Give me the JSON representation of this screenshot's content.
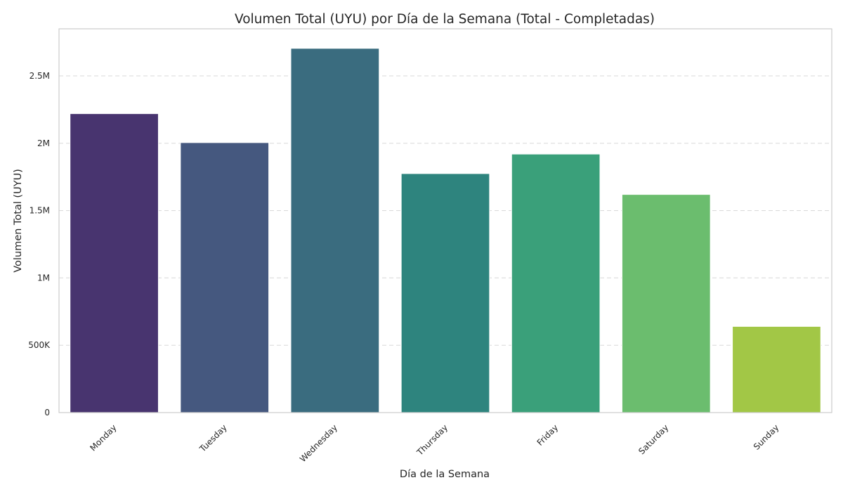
{
  "chart_data": {
    "type": "bar",
    "title": "Volumen Total (UYU) por Día de la Semana (Total - Completadas)",
    "xlabel": "Día de la Semana",
    "ylabel": "Volumen Total (UYU)",
    "categories": [
      "Monday",
      "Tuesday",
      "Wednesday",
      "Thursday",
      "Friday",
      "Saturday",
      "Sunday"
    ],
    "values": [
      2220000,
      2005000,
      2705000,
      1775000,
      1920000,
      1620000,
      640000
    ],
    "ylim": [
      0,
      2850000
    ],
    "yticks": [
      {
        "value": 0,
        "label": "0"
      },
      {
        "value": 500000,
        "label": "500K"
      },
      {
        "value": 1000000,
        "label": "1M"
      },
      {
        "value": 1500000,
        "label": "1.5M"
      },
      {
        "value": 2000000,
        "label": "2M"
      },
      {
        "value": 2500000,
        "label": "2.5M"
      }
    ],
    "colors": [
      "#48346f",
      "#45587f",
      "#3a6c7f",
      "#2e847e",
      "#3aa07a",
      "#6bbd6e",
      "#a2c746"
    ],
    "grid": "y-dashed",
    "legend": "none"
  }
}
